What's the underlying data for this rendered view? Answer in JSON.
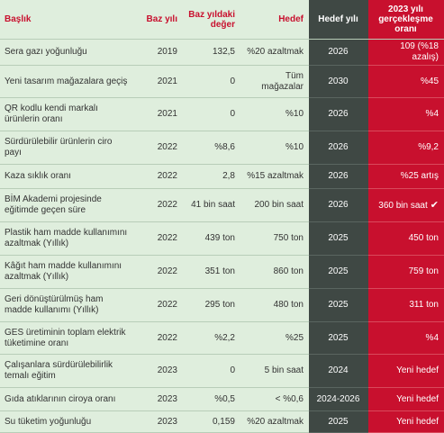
{
  "headers": {
    "title": "Başlık",
    "base_year": "Baz yılı",
    "base_value": "Baz yıldaki değer",
    "target": "Hedef",
    "target_year": "Hedef yılı",
    "achieved": "2023 yılı gerçekleşme oranı"
  },
  "rows": [
    {
      "title": "Sera gazı yoğunluğu",
      "base_year": "2019",
      "base_value": "132,5",
      "target": "%20 azaltmak",
      "target_year": "2026",
      "achieved": "109 (%18 azalış)"
    },
    {
      "title": "Yeni tasarım mağazalara geçiş",
      "base_year": "2021",
      "base_value": "0",
      "target": "Tüm mağazalar",
      "target_year": "2030",
      "achieved": "%45"
    },
    {
      "title": "QR kodlu kendi markalı ürünlerin oranı",
      "base_year": "2021",
      "base_value": "0",
      "target": "%10",
      "target_year": "2026",
      "achieved": "%4"
    },
    {
      "title": "Sürdürülebilir ürünlerin ciro payı",
      "base_year": "2022",
      "base_value": "%8,6",
      "target": "%10",
      "target_year": "2026",
      "achieved": "%9,2"
    },
    {
      "title": "Kaza sıklık oranı",
      "base_year": "2022",
      "base_value": "2,8",
      "target": "%15 azaltmak",
      "target_year": "2026",
      "achieved": "%25 artış"
    },
    {
      "title": "BİM Akademi projesinde eğitimde geçen süre",
      "base_year": "2022",
      "base_value": "41 bin saat",
      "target": "200 bin saat",
      "target_year": "2026",
      "achieved": "360 bin saat",
      "check": "✔"
    },
    {
      "title": "Plastik ham madde kullanımını azaltmak (Yıllık)",
      "base_year": "2022",
      "base_value": "439 ton",
      "target": "750 ton",
      "target_year": "2025",
      "achieved": "450 ton"
    },
    {
      "title": "Kâğıt ham madde kullanımını azaltmak (Yıllık)",
      "base_year": "2022",
      "base_value": "351 ton",
      "target": "860 ton",
      "target_year": "2025",
      "achieved": "759 ton"
    },
    {
      "title": "Geri dönüştürülmüş ham madde kullanımı (Yıllık)",
      "base_year": "2022",
      "base_value": "295 ton",
      "target": "480 ton",
      "target_year": "2025",
      "achieved": "311 ton"
    },
    {
      "title": "GES üretiminin toplam elektrik tüketimine oranı",
      "base_year": "2022",
      "base_value": "%2,2",
      "target": "%25",
      "target_year": "2025",
      "achieved": "%4"
    },
    {
      "title": "Çalışanlara sürdürülebilirlik temalı eğitim",
      "base_year": "2023",
      "base_value": "0",
      "target": "5 bin saat",
      "target_year": "2024",
      "achieved": "Yeni hedef"
    },
    {
      "title": "Gıda atıklarının ciroya oranı",
      "base_year": "2023",
      "base_value": "%0,5",
      "target": "< %0,6",
      "target_year": "2024-2026",
      "achieved": "Yeni hedef"
    },
    {
      "title": "Su tüketim yoğunluğu",
      "base_year": "2023",
      "base_value": "0,159",
      "target": "%20 azaltmak",
      "target_year": "2025",
      "achieved": "Yeni hedef"
    }
  ]
}
